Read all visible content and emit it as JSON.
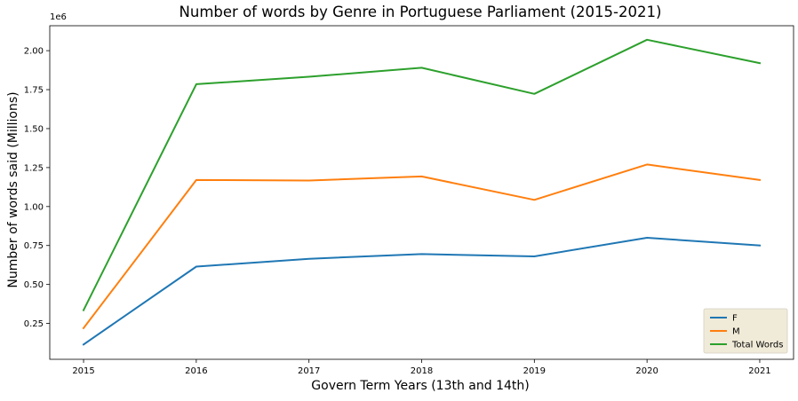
{
  "chart_data": {
    "type": "line",
    "title": "Number of words by Genre in Portuguese Parliament (2015-2021)",
    "xlabel": "Govern Term Years (13th and 14th)",
    "ylabel": "Number of words said (Millions)",
    "y_offset_label": "1e6",
    "x": [
      2015,
      2016,
      2017,
      2018,
      2019,
      2020,
      2021
    ],
    "x_tick_labels": [
      "2015",
      "2016",
      "2017",
      "2018",
      "2019",
      "2020",
      "2021"
    ],
    "y_ticks": [
      0.25,
      0.5,
      0.75,
      1.0,
      1.25,
      1.5,
      1.75,
      2.0
    ],
    "y_tick_labels": [
      "0.25",
      "0.50",
      "0.75",
      "1.00",
      "1.25",
      "1.50",
      "1.75",
      "2.00"
    ],
    "xlim": [
      2014.7,
      2021.3
    ],
    "ylim": [
      0.02,
      2.16
    ],
    "series": [
      {
        "name": "F",
        "color": "#1f77b4",
        "values": [
          0.115,
          0.615,
          0.665,
          0.695,
          0.68,
          0.8,
          0.75
        ]
      },
      {
        "name": "M",
        "color": "#ff7f0e",
        "values": [
          0.22,
          1.17,
          1.167,
          1.193,
          1.043,
          1.27,
          1.17
        ]
      },
      {
        "name": "Total Words",
        "color": "#2ca02c",
        "values": [
          0.335,
          1.785,
          1.833,
          1.89,
          1.723,
          2.07,
          1.92
        ]
      }
    ],
    "legend_position": "bottom-right",
    "grid": false
  }
}
